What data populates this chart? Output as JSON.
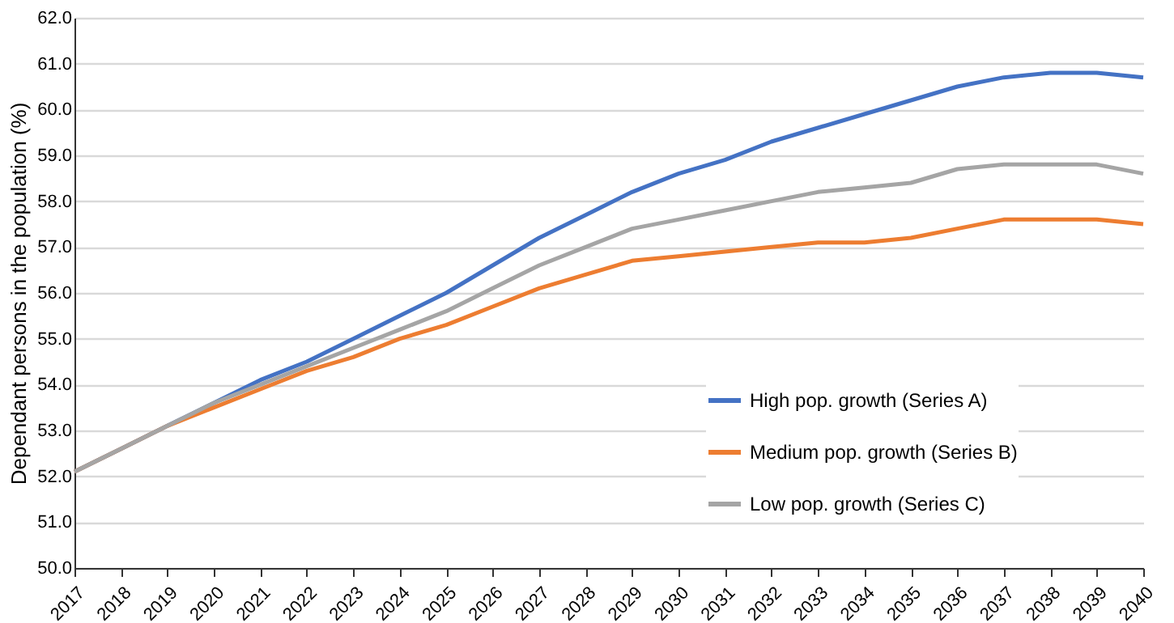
{
  "chart_data": {
    "type": "line",
    "ylabel": "Dependant persons in the population (%)",
    "categories": [
      "2017",
      "2018",
      "2019",
      "2020",
      "2021",
      "2022",
      "2023",
      "2024",
      "2025",
      "2026",
      "2027",
      "2028",
      "2029",
      "2030",
      "2031",
      "2032",
      "2033",
      "2034",
      "2035",
      "2036",
      "2037",
      "2038",
      "2039",
      "2040"
    ],
    "series": [
      {
        "name": "High pop. growth (Series A)",
        "color": "#4472c4",
        "values": [
          52.1,
          52.6,
          53.1,
          53.6,
          54.1,
          54.5,
          55.0,
          55.5,
          56.0,
          56.6,
          57.2,
          57.7,
          58.2,
          58.6,
          58.9,
          59.3,
          59.6,
          59.9,
          60.2,
          60.5,
          60.7,
          60.8,
          60.8,
          60.7
        ]
      },
      {
        "name": "Medium pop. growth (Series B)",
        "color": "#ed7d31",
        "values": [
          52.1,
          52.6,
          53.1,
          53.5,
          53.9,
          54.3,
          54.6,
          55.0,
          55.3,
          55.7,
          56.1,
          56.4,
          56.7,
          56.8,
          56.9,
          57.0,
          57.1,
          57.1,
          57.2,
          57.4,
          57.6,
          57.6,
          57.6,
          57.5
        ]
      },
      {
        "name": "Low pop. growth (Series C)",
        "color": "#a5a5a5",
        "values": [
          52.1,
          52.6,
          53.1,
          53.6,
          54.0,
          54.4,
          54.8,
          55.2,
          55.6,
          56.1,
          56.6,
          57.0,
          57.4,
          57.6,
          57.8,
          58.0,
          58.2,
          58.3,
          58.4,
          58.7,
          58.8,
          58.8,
          58.8,
          58.6
        ]
      }
    ],
    "ylim": [
      50,
      62
    ],
    "yticks": [
      {
        "value": 50,
        "label": "50.0"
      },
      {
        "value": 51,
        "label": "51.0"
      },
      {
        "value": 52,
        "label": "52.0"
      },
      {
        "value": 53,
        "label": "53.0"
      },
      {
        "value": 54,
        "label": "54.0"
      },
      {
        "value": 55,
        "label": "55.0"
      },
      {
        "value": 56,
        "label": "56.0"
      },
      {
        "value": 57,
        "label": "57.0"
      },
      {
        "value": 58,
        "label": "58.0"
      },
      {
        "value": 59,
        "label": "59.0"
      },
      {
        "value": 60,
        "label": "60.0"
      },
      {
        "value": 61,
        "label": "61.0"
      },
      {
        "value": 62,
        "label": "62.0"
      }
    ],
    "grid": "y",
    "legend": "bottom right",
    "marker": "none",
    "line_style": "solid"
  }
}
